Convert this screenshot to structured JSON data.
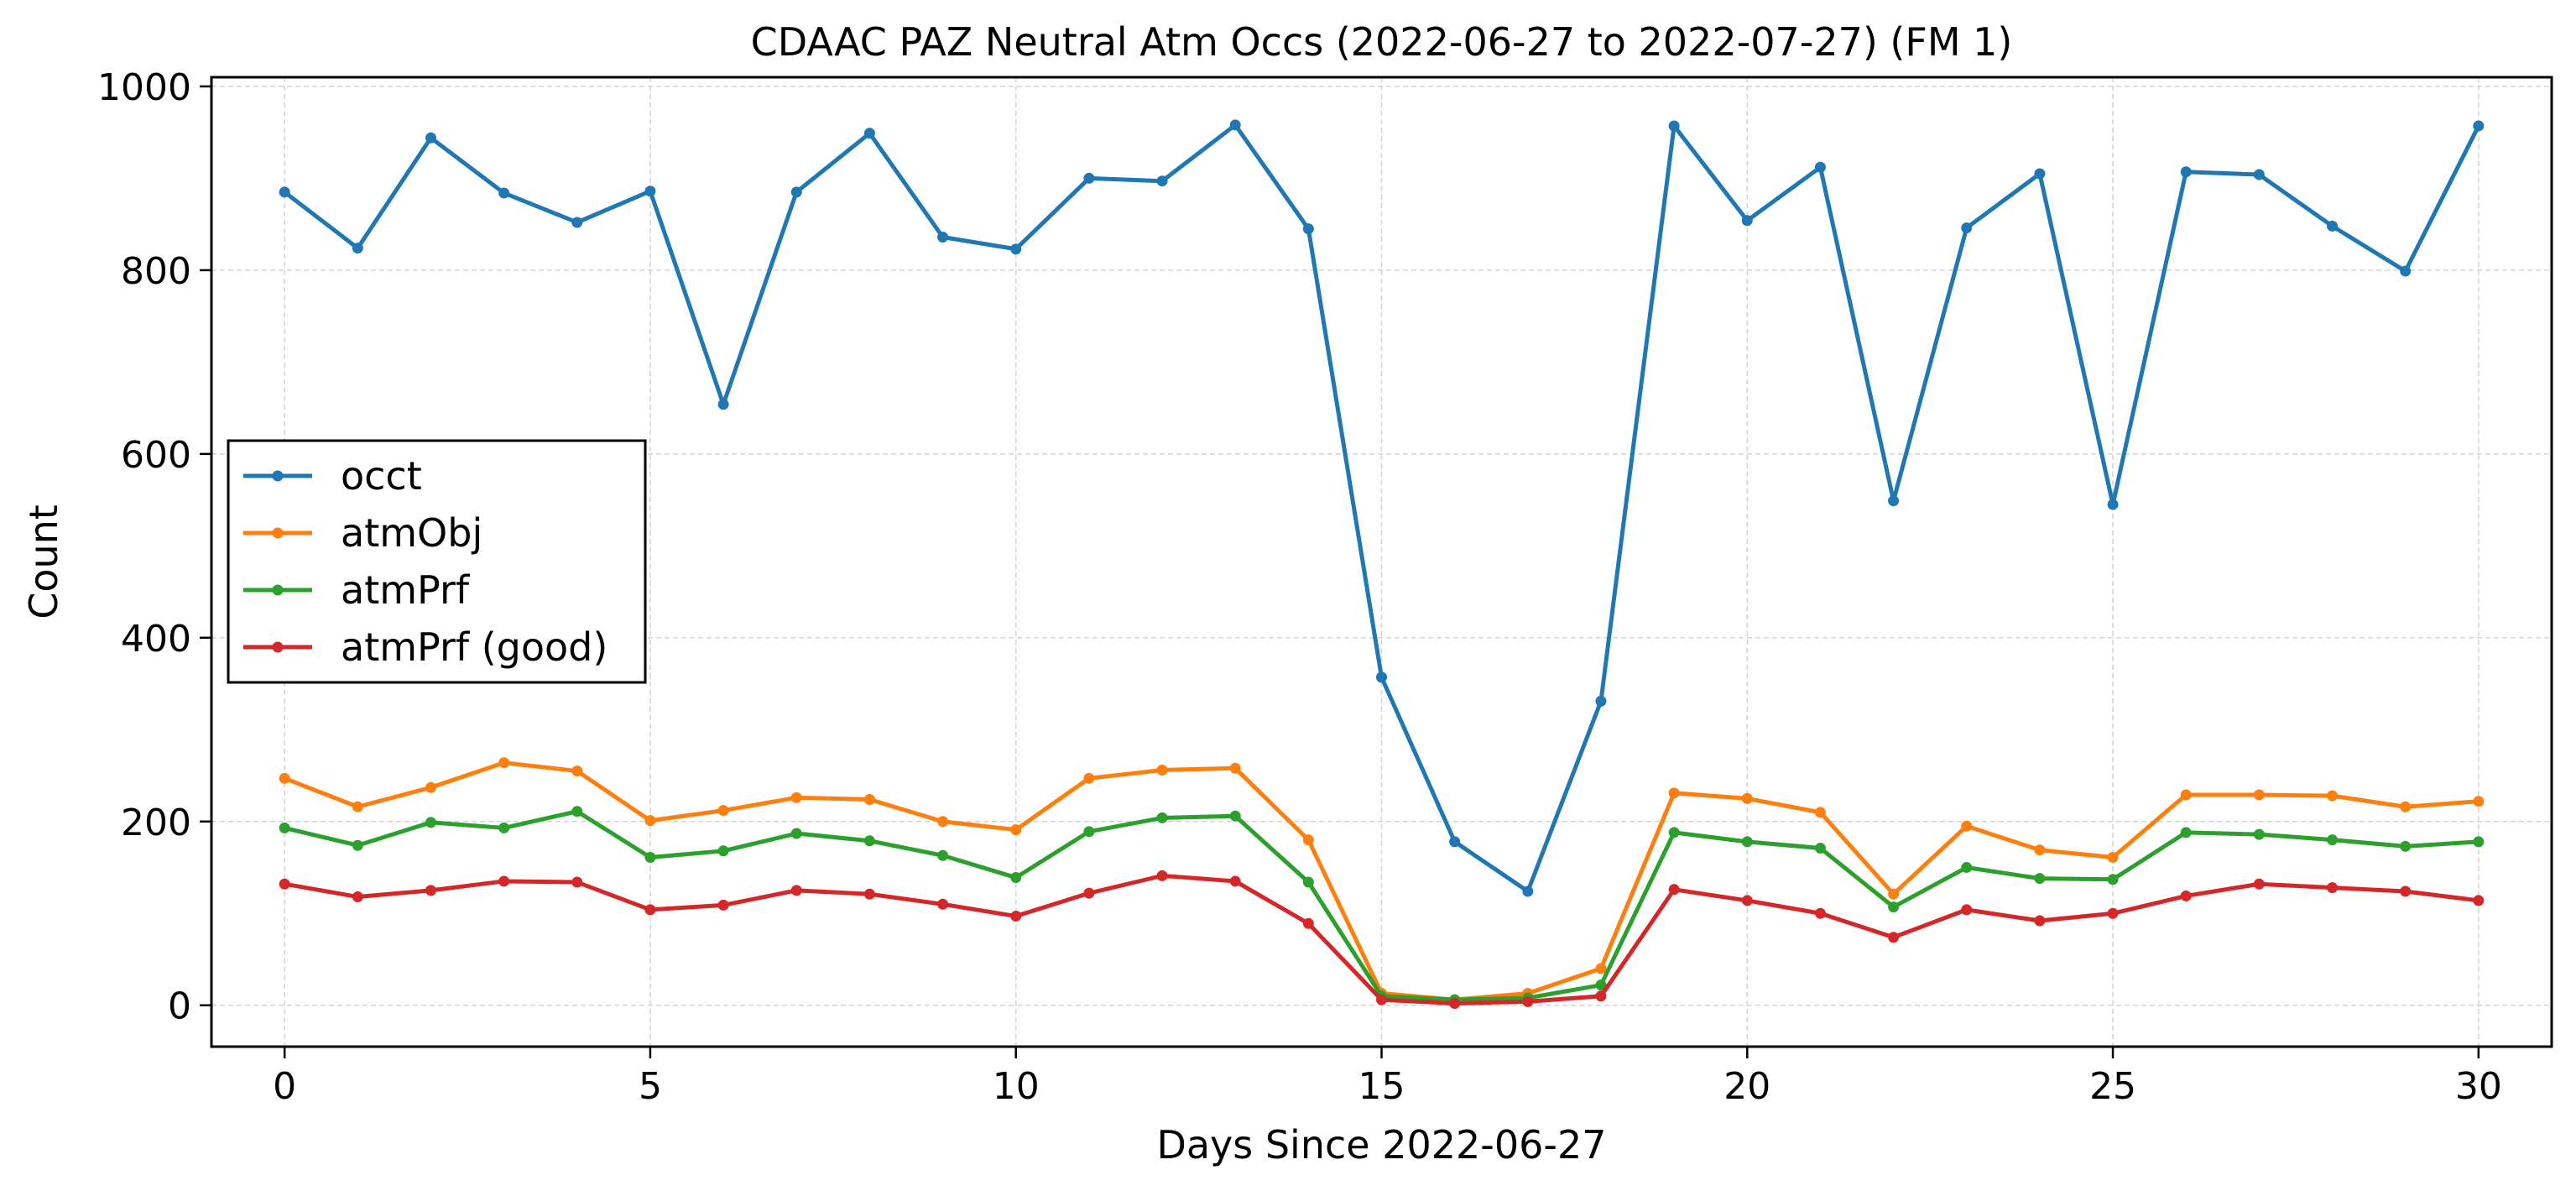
{
  "chart_data": {
    "type": "line",
    "title": "CDAAC PAZ Neutral Atm Occs (2022-06-27 to 2022-07-27) (FM 1)",
    "xlabel": "Days Since 2022-06-27",
    "ylabel": "Count",
    "xlim": [
      -1,
      31
    ],
    "ylim": [
      -45,
      1010
    ],
    "xticks": [
      0,
      5,
      10,
      15,
      20,
      25,
      30
    ],
    "yticks": [
      0,
      200,
      400,
      600,
      800,
      1000
    ],
    "grid": true,
    "legend_position": "center-left",
    "x": [
      0,
      1,
      2,
      3,
      4,
      5,
      6,
      7,
      8,
      9,
      10,
      11,
      12,
      13,
      14,
      15,
      16,
      17,
      18,
      19,
      20,
      21,
      22,
      23,
      24,
      25,
      26,
      27,
      28,
      29,
      30
    ],
    "series": [
      {
        "name": "occt",
        "color": "#1f77b4",
        "values": [
          885,
          824,
          944,
          884,
          852,
          886,
          654,
          885,
          949,
          836,
          823,
          900,
          897,
          958,
          845,
          357,
          178,
          124,
          331,
          957,
          854,
          912,
          549,
          846,
          905,
          545,
          907,
          904,
          848,
          799,
          957
        ]
      },
      {
        "name": "atmObj",
        "color": "#ff7f0e",
        "values": [
          247,
          216,
          237,
          264,
          255,
          201,
          212,
          226,
          224,
          200,
          191,
          247,
          256,
          258,
          180,
          13,
          6,
          13,
          40,
          231,
          225,
          210,
          121,
          195,
          169,
          161,
          229,
          229,
          228,
          216,
          222
        ]
      },
      {
        "name": "atmPrf",
        "color": "#2ca02c",
        "values": [
          193,
          174,
          199,
          193,
          211,
          161,
          168,
          187,
          179,
          163,
          139,
          189,
          204,
          206,
          134,
          10,
          6,
          8,
          22,
          188,
          178,
          171,
          107,
          150,
          138,
          137,
          188,
          186,
          180,
          173,
          178
        ]
      },
      {
        "name": "atmPrf (good)",
        "color": "#d62728",
        "values": [
          132,
          118,
          125,
          135,
          134,
          104,
          109,
          125,
          121,
          110,
          97,
          122,
          141,
          135,
          89,
          6,
          2,
          4,
          10,
          126,
          114,
          100,
          74,
          104,
          92,
          100,
          119,
          132,
          128,
          124,
          114
        ]
      }
    ]
  }
}
